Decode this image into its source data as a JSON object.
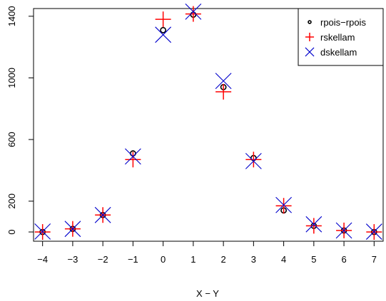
{
  "chart_data": {
    "type": "scatter",
    "xlabel": "X − Y",
    "ylabel": "",
    "title": "",
    "x": [
      -4,
      -3,
      -2,
      -1,
      0,
      1,
      2,
      3,
      4,
      5,
      6,
      7
    ],
    "xlim": [
      -4.3,
      7.3
    ],
    "ylim": [
      -60,
      1450
    ],
    "x_ticks": [
      "−4",
      "−3",
      "−2",
      "−1",
      "0",
      "1",
      "2",
      "3",
      "4",
      "5",
      "6",
      "7"
    ],
    "y_ticks": [
      "0",
      "200",
      "600",
      "1000",
      "1400"
    ],
    "y_tick_values": [
      0,
      200,
      600,
      1000,
      1400
    ],
    "legend_position": "top-right",
    "grid": false,
    "series": [
      {
        "name": "rpois−rpois",
        "marker": "circle",
        "color": "#000000",
        "values": [
          0,
          20,
          110,
          510,
          1310,
          1410,
          940,
          480,
          140,
          40,
          10,
          0
        ]
      },
      {
        "name": "rskellam",
        "marker": "plus",
        "color": "#ff0000",
        "values": [
          0,
          20,
          110,
          470,
          1380,
          1415,
          910,
          470,
          170,
          40,
          10,
          0
        ]
      },
      {
        "name": "dskellam",
        "marker": "cross",
        "color": "#0000cc",
        "values": [
          3,
          20,
          110,
          490,
          1280,
          1430,
          980,
          460,
          175,
          50,
          10,
          2
        ]
      }
    ]
  }
}
